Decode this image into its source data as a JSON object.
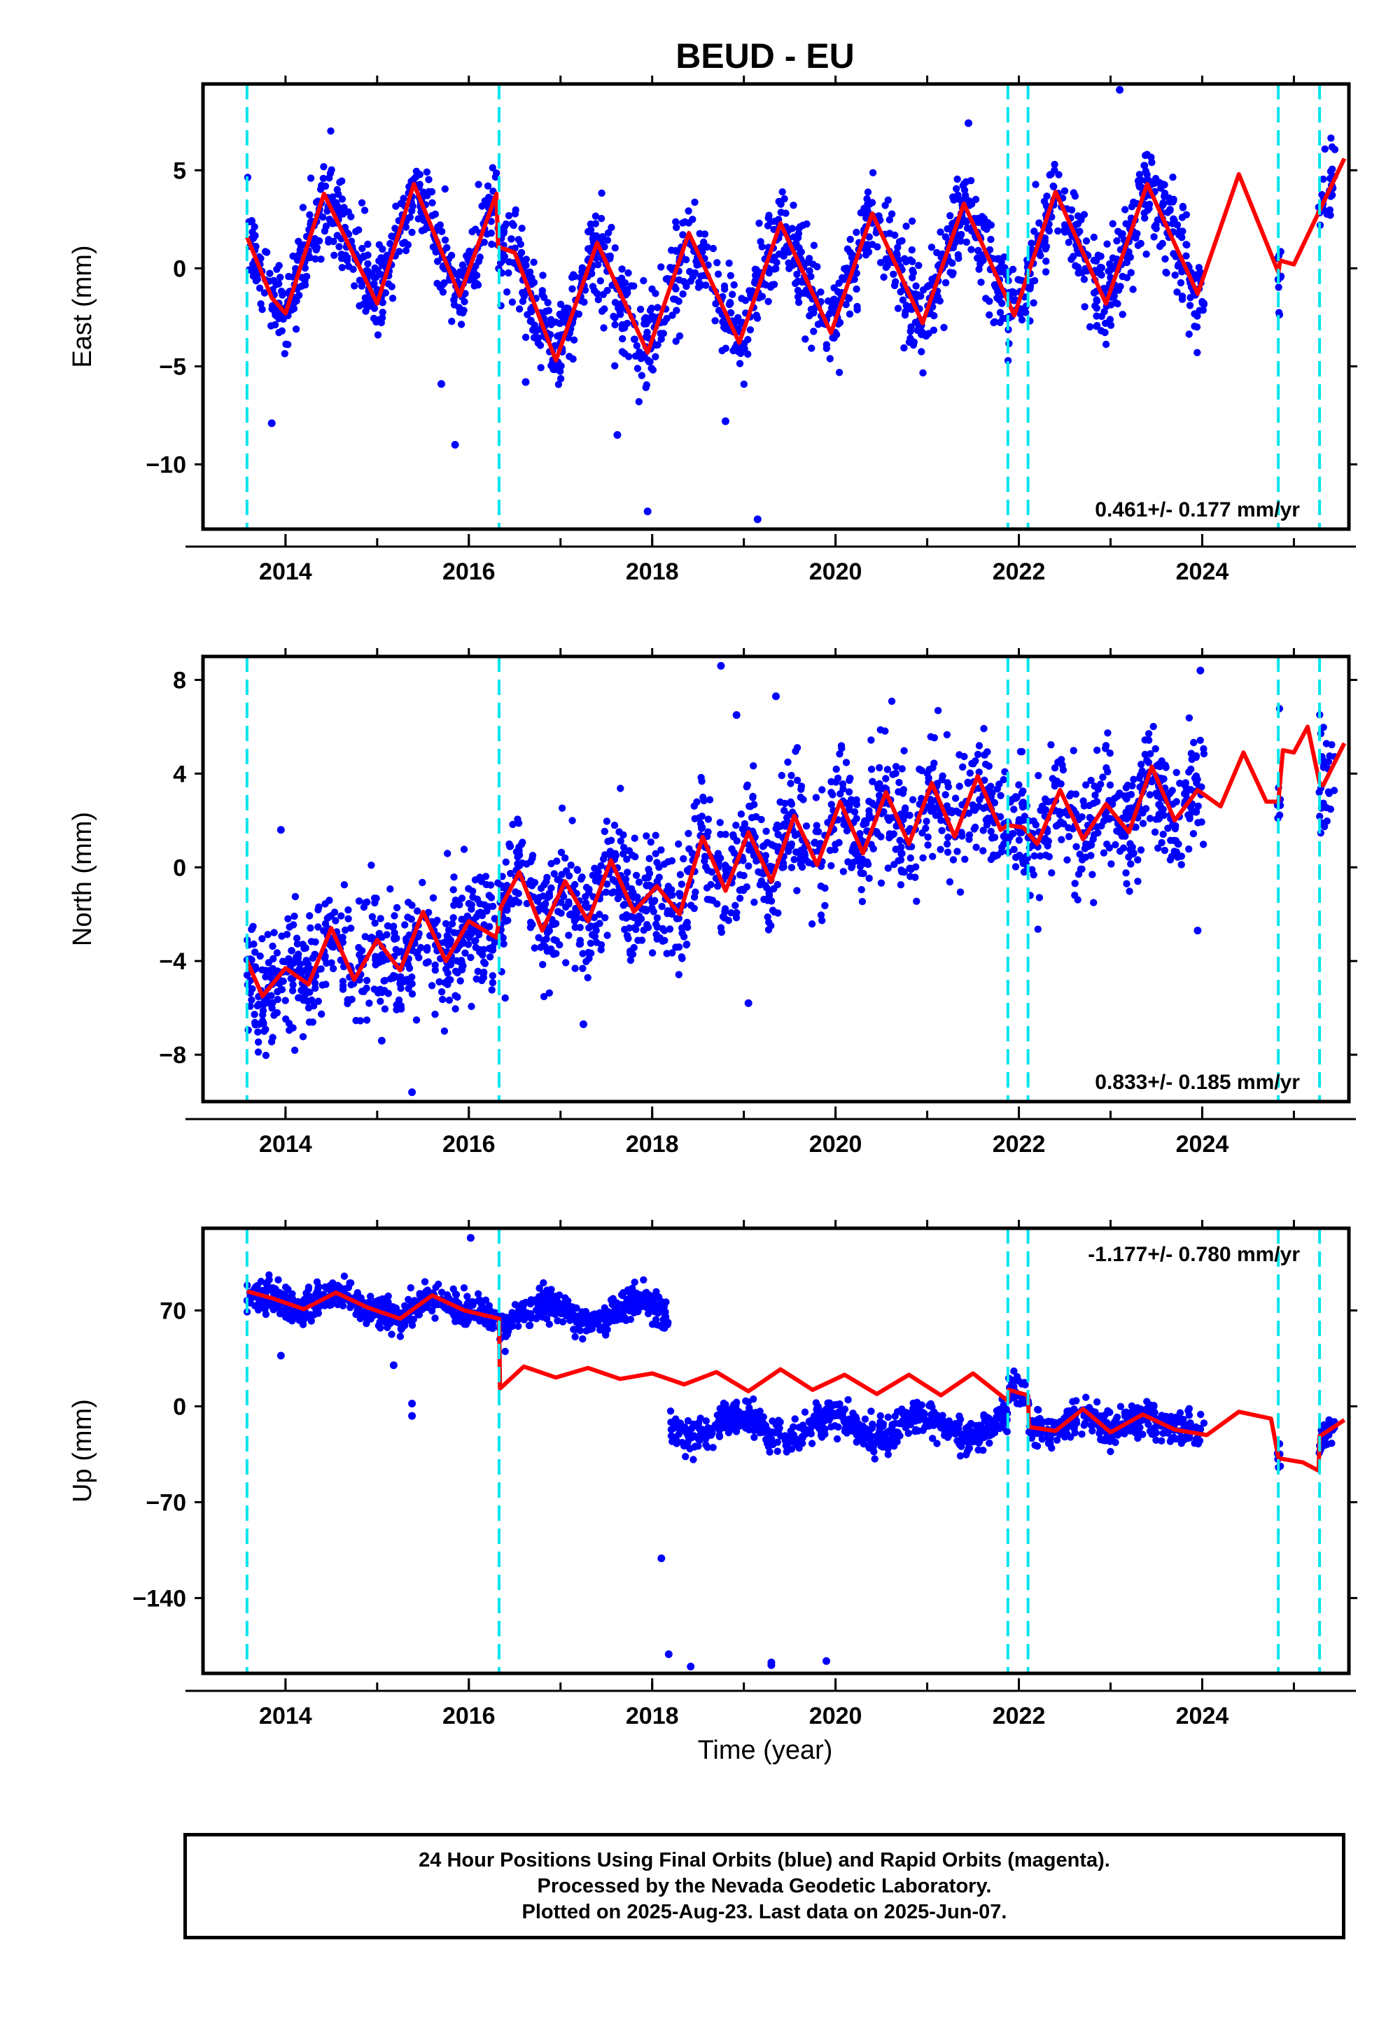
{
  "title": "BEUD - EU",
  "xlabel": "Time (year)",
  "footer": {
    "line1": "24 Hour Positions Using Final Orbits (blue) and Rapid Orbits (magenta).",
    "line2": "Processed by the Nevada Geodetic Laboratory.",
    "line3": "Plotted on 2025-Aug-23. Last data on 2025-Jun-07."
  },
  "colors": {
    "data": "#0000ff",
    "model": "#ff0000",
    "breaks": "#00e5ee",
    "frame": "#000000"
  },
  "chart_data": [
    {
      "type": "scatter",
      "panel": "east",
      "ylabel": "East (mm)",
      "rate": "0.461+/- 0.177 mm/yr",
      "xlim": [
        2013.1,
        2025.6
      ],
      "ylim": [
        -13.3,
        9.4
      ],
      "yticks": [
        5,
        0,
        -5,
        -10
      ],
      "yticklabels": [
        "5",
        "0",
        "−5",
        "−10"
      ],
      "xticks": [
        2014,
        2016,
        2018,
        2020,
        2022,
        2024
      ],
      "breaks": [
        2013.58,
        2016.33,
        2021.88,
        2022.1,
        2024.83,
        2025.28
      ],
      "model": {
        "x": [
          2013.58,
          2013.85,
          2014.0,
          2014.42,
          2015.0,
          2015.4,
          2015.9,
          2016.3,
          2016.32,
          2016.5,
          2016.95,
          2017.4,
          2017.95,
          2018.4,
          2018.95,
          2019.4,
          2019.95,
          2020.4,
          2020.95,
          2021.4,
          2021.95,
          2022.4,
          2022.95,
          2023.4,
          2023.95,
          2024.4,
          2024.83,
          2024.85,
          2025.0,
          2025.55
        ],
        "y": [
          1.6,
          -1.5,
          -2.3,
          3.8,
          -1.8,
          4.3,
          -1.4,
          3.8,
          1.1,
          0.8,
          -4.7,
          1.3,
          -4.3,
          1.8,
          -3.8,
          2.3,
          -3.3,
          2.8,
          -2.8,
          3.3,
          -2.4,
          3.9,
          -1.8,
          4.3,
          -1.3,
          4.8,
          -0.2,
          0.4,
          0.2,
          5.6
        ]
      },
      "scatter": {
        "n": 2200,
        "gaps": [
          [
            2024.02,
            2024.82
          ],
          [
            2024.86,
            2025.27
          ]
        ],
        "outliers": [
          [
            2013.85,
            -7.9
          ],
          [
            2015.85,
            -9.0
          ],
          [
            2016.62,
            -5.8
          ],
          [
            2017.62,
            -8.5
          ],
          [
            2017.95,
            -12.4
          ],
          [
            2019.15,
            -12.8
          ],
          [
            2018.8,
            -7.8
          ],
          [
            2023.1,
            9.1
          ],
          [
            2021.45,
            7.4
          ],
          [
            2015.7,
            -5.9
          ]
        ]
      }
    },
    {
      "type": "scatter",
      "panel": "north",
      "ylabel": "North (mm)",
      "rate": "0.833+/- 0.185 mm/yr",
      "xlim": [
        2013.1,
        2025.6
      ],
      "ylim": [
        -10.0,
        9.0
      ],
      "yticks": [
        8,
        4,
        0,
        -4,
        -8
      ],
      "yticklabels": [
        "8",
        "4",
        "0",
        "−4",
        "−8"
      ],
      "xticks": [
        2014,
        2016,
        2018,
        2020,
        2022,
        2024
      ],
      "breaks": [
        2013.58,
        2016.33,
        2021.88,
        2022.1,
        2024.83,
        2025.28
      ],
      "model": {
        "x": [
          2013.58,
          2013.75,
          2014.0,
          2014.25,
          2014.5,
          2014.75,
          2015.0,
          2015.25,
          2015.5,
          2015.75,
          2016.0,
          2016.3,
          2016.35,
          2016.55,
          2016.8,
          2017.05,
          2017.3,
          2017.55,
          2017.8,
          2018.05,
          2018.3,
          2018.55,
          2018.8,
          2019.05,
          2019.3,
          2019.55,
          2019.8,
          2020.05,
          2020.3,
          2020.55,
          2020.8,
          2021.05,
          2021.3,
          2021.55,
          2021.8,
          2021.88,
          2022.05,
          2022.2,
          2022.45,
          2022.7,
          2022.95,
          2023.2,
          2023.45,
          2023.7,
          2023.95,
          2024.2,
          2024.45,
          2024.7,
          2024.83,
          2024.88,
          2025.0,
          2025.15,
          2025.28,
          2025.32,
          2025.55
        ],
        "y": [
          -4.0,
          -5.5,
          -4.3,
          -5.0,
          -2.6,
          -4.8,
          -3.1,
          -4.4,
          -1.9,
          -4.0,
          -2.3,
          -3.0,
          -1.7,
          -0.2,
          -2.7,
          -0.6,
          -2.3,
          0.3,
          -1.9,
          -0.8,
          -2.0,
          1.3,
          -1.0,
          1.5,
          -0.6,
          2.2,
          0.1,
          2.8,
          0.6,
          3.2,
          1.0,
          3.6,
          1.3,
          3.9,
          1.6,
          1.8,
          1.7,
          1.0,
          3.3,
          1.2,
          2.7,
          1.5,
          4.3,
          2.0,
          3.3,
          2.6,
          4.9,
          2.8,
          2.8,
          5.0,
          4.9,
          6.0,
          3.6,
          3.5,
          5.3
        ]
      },
      "scatter": {
        "n": 2200,
        "gaps": [
          [
            2024.02,
            2024.82
          ],
          [
            2024.86,
            2025.27
          ]
        ],
        "outliers": [
          [
            2013.95,
            1.6
          ],
          [
            2018.75,
            8.6
          ],
          [
            2019.35,
            7.3
          ],
          [
            2018.92,
            6.5
          ],
          [
            2023.98,
            8.4
          ],
          [
            2015.38,
            -9.6
          ],
          [
            2015.05,
            -7.4
          ],
          [
            2017.25,
            -6.7
          ],
          [
            2019.05,
            -5.8
          ],
          [
            2023.95,
            -2.7
          ]
        ]
      }
    },
    {
      "type": "scatter",
      "panel": "up",
      "ylabel": "Up (mm)",
      "rate": "-1.177+/- 0.780 mm/yr",
      "xlim": [
        2013.1,
        2025.6
      ],
      "ylim": [
        -195.0,
        130.0
      ],
      "yticks": [
        70,
        0,
        -70,
        -140
      ],
      "yticklabels": [
        "70",
        "0",
        "−70",
        "−140"
      ],
      "xticks": [
        2014,
        2016,
        2018,
        2020,
        2022,
        2024
      ],
      "breaks": [
        2013.58,
        2016.33,
        2021.88,
        2022.1,
        2024.83,
        2025.28
      ],
      "model": {
        "x": [
          2013.58,
          2013.85,
          2014.2,
          2014.55,
          2014.9,
          2015.25,
          2015.6,
          2015.95,
          2016.33,
          2016.34,
          2016.6,
          2016.95,
          2017.3,
          2017.65,
          2018.0,
          2018.35,
          2018.7,
          2019.05,
          2019.4,
          2019.75,
          2020.1,
          2020.45,
          2020.8,
          2021.15,
          2021.5,
          2021.88,
          2021.89,
          2022.1,
          2022.11,
          2022.4,
          2022.7,
          2023.0,
          2023.35,
          2023.7,
          2024.05,
          2024.4,
          2024.75,
          2024.83,
          2024.84,
          2025.1,
          2025.27,
          2025.28,
          2025.55
        ],
        "y": [
          84,
          79,
          71,
          83,
          72,
          64,
          81,
          70,
          64,
          13,
          29,
          21,
          28,
          20,
          24,
          16,
          25,
          11,
          27,
          12,
          23,
          9,
          23,
          8,
          24,
          4,
          12,
          8,
          -15,
          -18,
          -2,
          -19,
          -6,
          -17,
          -21,
          -4,
          -9,
          -37,
          -38,
          -41,
          -47,
          -22,
          -10
        ]
      },
      "scatter": {
        "n": 2200,
        "gaps": [
          [
            2018.18,
            2018.2
          ],
          [
            2024.02,
            2024.82
          ],
          [
            2024.86,
            2025.27
          ]
        ],
        "outliers": [
          [
            2013.95,
            37
          ],
          [
            2015.38,
            -7
          ],
          [
            2015.38,
            2
          ],
          [
            2015.18,
            30
          ],
          [
            2016.02,
            123
          ],
          [
            2018.1,
            -111
          ],
          [
            2018.18,
            -181
          ],
          [
            2018.42,
            -190
          ],
          [
            2019.3,
            -187
          ],
          [
            2019.3,
            -189
          ],
          [
            2019.9,
            -186
          ]
        ]
      }
    }
  ]
}
